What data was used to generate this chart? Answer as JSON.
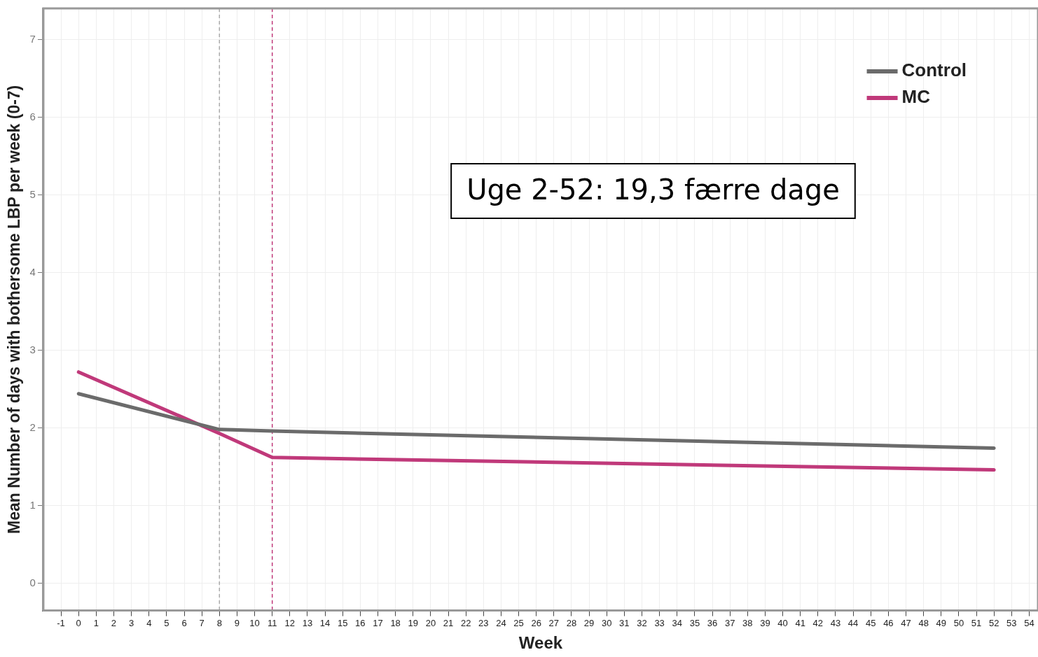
{
  "chart_data": {
    "type": "line",
    "xlabel": "Week",
    "ylabel": "Mean Number of days with bothersome LBP per week (0-7)",
    "xlim": [
      -2,
      54.5
    ],
    "xticks": [
      -1,
      0,
      1,
      2,
      3,
      4,
      5,
      6,
      7,
      8,
      9,
      10,
      11,
      12,
      13,
      14,
      15,
      16,
      17,
      18,
      19,
      20,
      21,
      22,
      23,
      24,
      25,
      26,
      27,
      28,
      29,
      30,
      31,
      32,
      33,
      34,
      35,
      36,
      37,
      38,
      39,
      40,
      41,
      42,
      43,
      44,
      45,
      46,
      47,
      48,
      49,
      50,
      51,
      52,
      53,
      54
    ],
    "ylim": [
      -0.35,
      7.4
    ],
    "yticks": [
      0,
      1,
      2,
      3,
      4,
      5,
      6,
      7
    ],
    "series": [
      {
        "name": "Control",
        "color": "#6b6b6b",
        "x": [
          0,
          8,
          11,
          52
        ],
        "values": [
          2.44,
          1.98,
          1.96,
          1.74
        ]
      },
      {
        "name": "MC",
        "color": "#c0397a",
        "x": [
          0,
          8,
          11,
          52
        ],
        "values": [
          2.72,
          1.93,
          1.62,
          1.46
        ]
      }
    ],
    "ref_lines": [
      {
        "axis": "x",
        "value": 8,
        "color": "#aaaaaa",
        "line_style": "dashed"
      },
      {
        "axis": "x",
        "value": 11,
        "color": "#c0397a",
        "line_style": "dashed"
      }
    ],
    "annotations": [
      "Uge 2-52: 19,3 færre dage"
    ],
    "grid": true,
    "legend": "top right",
    "marker": "none",
    "line_style": "solid"
  }
}
